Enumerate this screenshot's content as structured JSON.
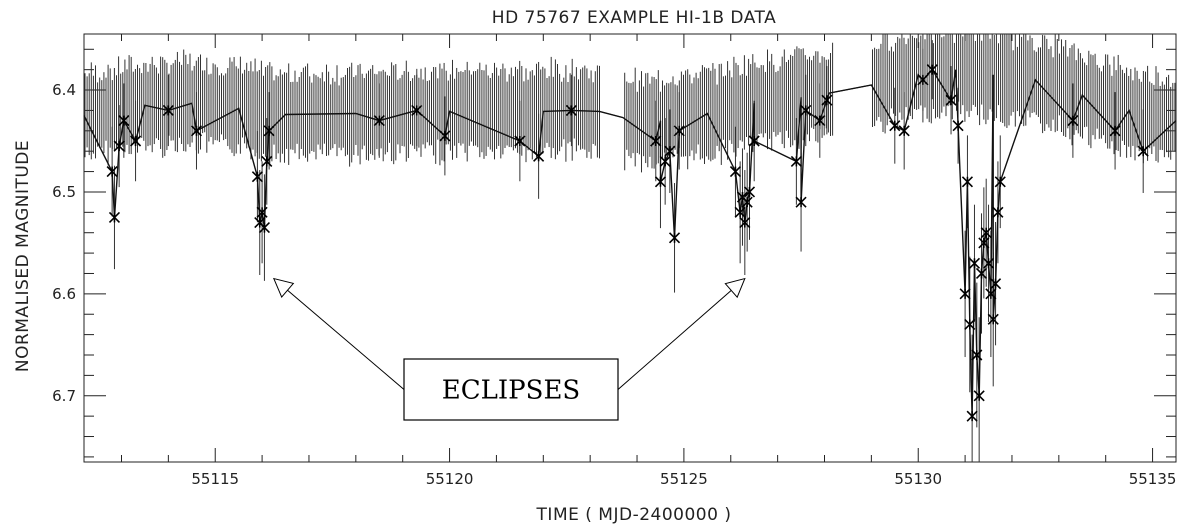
{
  "chart_data": {
    "type": "scatter",
    "title": "HD 75767   EXAMPLE HI-1B DATA",
    "xlabel": "TIME   ( MJD-2400000 )",
    "ylabel": "NORMALISED  MAGNITUDE",
    "xlim": [
      55112.2,
      55135.5
    ],
    "ylim": [
      6.765,
      6.345
    ],
    "y_axis_inverted": true,
    "x_ticks": [
      55115,
      55120,
      55125,
      55130,
      55135
    ],
    "y_ticks": [
      6.4,
      6.5,
      6.6,
      6.7
    ],
    "x_minor_step": 1,
    "y_minor_step": 0.02,
    "grid": false,
    "marker": "asterisk",
    "error_bars": true,
    "error_bar_half_length": 0.04,
    "baseline": {
      "x": [
        55112.2,
        55113.5,
        55114.5,
        55115.5,
        55116.5,
        55118,
        55120,
        55122,
        55123.2,
        55123.7,
        55124.5,
        55125.5,
        55126.5,
        55127.5,
        55128.1,
        55129.0,
        55130.0,
        55130.8,
        55131.6,
        55132.5,
        55133.5,
        55134.5,
        55135.5
      ],
      "y": [
        6.425,
        6.415,
        6.413,
        6.418,
        6.424,
        6.423,
        6.421,
        6.421,
        6.421,
        6.427,
        6.43,
        6.423,
        6.413,
        6.407,
        6.403,
        6.395,
        6.385,
        6.38,
        6.385,
        6.39,
        6.405,
        6.42,
        6.43
      ]
    },
    "gaps": [
      [
        55123.2,
        55123.7
      ],
      [
        55128.2,
        55129.0
      ]
    ],
    "points": {
      "x": [
        55112.8,
        55112.85,
        55112.95,
        55113.05,
        55113.3,
        55114.0,
        55114.6,
        55115.9,
        55115.95,
        55116.0,
        55116.05,
        55116.1,
        55116.15,
        55118.5,
        55119.3,
        55119.9,
        55121.5,
        55121.9,
        55122.6,
        55124.4,
        55124.5,
        55124.6,
        55124.7,
        55124.8,
        55124.9,
        55126.1,
        55126.2,
        55126.25,
        55126.3,
        55126.35,
        55126.4,
        55126.5,
        55127.4,
        55127.5,
        55127.6,
        55127.9,
        55128.05,
        55129.5,
        55129.7,
        55130.1,
        55130.3,
        55130.7,
        55130.85,
        55131.0,
        55131.05,
        55131.1,
        55131.15,
        55131.2,
        55131.25,
        55131.3,
        55131.35,
        55131.4,
        55131.45,
        55131.5,
        55131.55,
        55131.6,
        55131.65,
        55131.7,
        55131.75,
        55133.3,
        55134.2,
        55134.8
      ],
      "y": [
        6.48,
        6.525,
        6.455,
        6.43,
        6.45,
        6.42,
        6.44,
        6.485,
        6.53,
        6.52,
        6.535,
        6.47,
        6.44,
        6.43,
        6.42,
        6.445,
        6.45,
        6.465,
        6.42,
        6.45,
        6.49,
        6.47,
        6.46,
        6.545,
        6.44,
        6.48,
        6.52,
        6.505,
        6.53,
        6.51,
        6.5,
        6.45,
        6.47,
        6.51,
        6.42,
        6.43,
        6.41,
        6.435,
        6.44,
        6.39,
        6.38,
        6.41,
        6.435,
        6.6,
        6.49,
        6.63,
        6.72,
        6.57,
        6.66,
        6.7,
        6.58,
        6.55,
        6.54,
        6.57,
        6.6,
        6.625,
        6.59,
        6.52,
        6.49,
        6.43,
        6.44,
        6.46
      ]
    },
    "annotations": [
      {
        "text": "ECLIPSES",
        "arrows_to": [
          [
            55116.25,
            6.585
          ],
          [
            55126.3,
            6.585
          ]
        ]
      }
    ]
  }
}
